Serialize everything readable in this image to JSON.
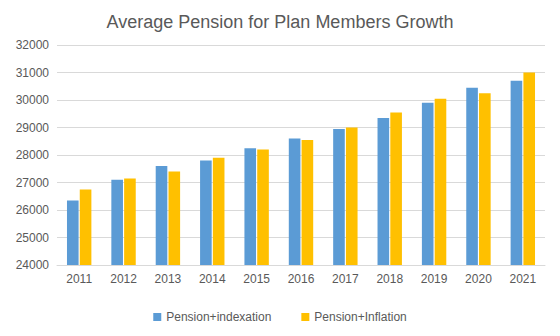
{
  "chart_data": {
    "type": "bar",
    "title": "Average Pension for Plan Members Growth",
    "categories": [
      "2011",
      "2012",
      "2013",
      "2014",
      "2015",
      "2016",
      "2017",
      "2018",
      "2019",
      "2020",
      "2021"
    ],
    "series": [
      {
        "name": "Pension+indexation",
        "color": "#5b9bd5",
        "values": [
          26350,
          27100,
          27600,
          27800,
          28250,
          28600,
          28950,
          29350,
          29900,
          30450,
          30700
        ]
      },
      {
        "name": "Pension+Inflation",
        "color": "#ffc000",
        "values": [
          26750,
          27150,
          27400,
          27900,
          28200,
          28550,
          29000,
          29550,
          30050,
          30250,
          31000
        ]
      }
    ],
    "ylim": [
      24000,
      32000
    ],
    "yticks": [
      24000,
      25000,
      26000,
      27000,
      28000,
      29000,
      30000,
      31000,
      32000
    ],
    "grid": true,
    "legend": "bottom"
  }
}
